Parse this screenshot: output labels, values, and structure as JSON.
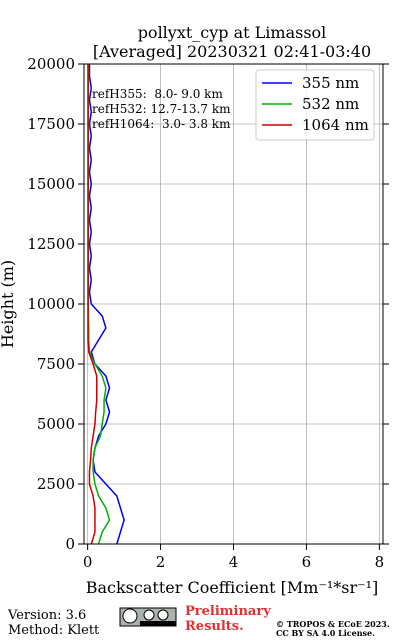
{
  "chart_data": {
    "type": "line",
    "title": [
      "pollyxt_cyp at Limassol",
      "[Averaged] 20230321 02:41-03:40"
    ],
    "x_label": "Backscatter Coefficient [Mm⁻¹*sr⁻¹]",
    "y_label": "Height (m)",
    "xlim": [
      -0.1,
      8.1
    ],
    "xticks": [
      0,
      2,
      4,
      6,
      8
    ],
    "ylim": [
      0,
      20000
    ],
    "yticks": [
      0,
      2500,
      5000,
      7500,
      10000,
      12500,
      15000,
      17500,
      20000
    ],
    "grid": true,
    "legend": "upper right",
    "annotations": [
      "refH355:  8.0- 9.0 km",
      "refH532: 12.7-13.7 km",
      "refH1064:  3.0- 3.8 km"
    ],
    "heights": [
      0,
      500,
      1000,
      1500,
      2000,
      2500,
      3000,
      3500,
      4000,
      4500,
      5000,
      5500,
      6000,
      6500,
      7000,
      7500,
      8000,
      8500,
      9000,
      9500,
      10000,
      10500,
      11000,
      11500,
      12000,
      12500,
      13000,
      13500,
      14000,
      14500,
      15000,
      15500,
      16000,
      16500,
      17000,
      17500,
      18000,
      18500,
      19000,
      19500,
      20000
    ],
    "series": [
      {
        "name": "355 nm",
        "color": "#0000ff",
        "values": [
          0.8,
          0.9,
          1.0,
          0.9,
          0.8,
          0.5,
          0.2,
          0.15,
          0.2,
          0.3,
          0.5,
          0.6,
          0.5,
          0.6,
          0.5,
          0.2,
          0.1,
          0.3,
          0.5,
          0.4,
          0.1,
          0.05,
          0.1,
          0.05,
          0.1,
          0.05,
          0.1,
          0.05,
          0.1,
          0.05,
          0.1,
          0.05,
          0.1,
          0.05,
          0.1,
          0.05,
          0.1,
          0.05,
          0.1,
          0.05,
          0.05
        ]
      },
      {
        "name": "532 nm",
        "color": "#00b000",
        "values": [
          0.3,
          0.4,
          0.6,
          0.5,
          0.3,
          0.2,
          0.15,
          0.15,
          0.2,
          0.35,
          0.4,
          0.45,
          0.45,
          0.5,
          0.4,
          0.2,
          0.05,
          0.03,
          0.03,
          0.02,
          0.02,
          0.02,
          0.02,
          0.02,
          0.02,
          0.02,
          0.02,
          0.02,
          0.02,
          0.02,
          0.02,
          0.02,
          0.02,
          0.02,
          0.02,
          0.02,
          0.02,
          0.02,
          0.02,
          0.02,
          0.02
        ]
      },
      {
        "name": "1064 nm",
        "color": "#d00000",
        "values": [
          0.1,
          0.2,
          0.2,
          0.2,
          0.15,
          0.05,
          0.05,
          0.08,
          0.1,
          0.15,
          0.2,
          0.22,
          0.25,
          0.25,
          0.25,
          0.15,
          0.03,
          0.01,
          0.01,
          0.01,
          0.01,
          0.01,
          0.01,
          0.01,
          0.01,
          0.01,
          0.01,
          0.01,
          0.01,
          0.01,
          0.01,
          0.01,
          0.01,
          0.01,
          0.01,
          0.01,
          0.01,
          0.01,
          0.01,
          0.01,
          0.01
        ]
      }
    ]
  },
  "footer": {
    "version": "Version: 3.6",
    "method": "Method: Klett",
    "status": [
      "Preliminary",
      "Results."
    ],
    "copyright": [
      "© TROPOS & ECoE 2023.",
      "CC BY SA 4.0 License."
    ]
  }
}
